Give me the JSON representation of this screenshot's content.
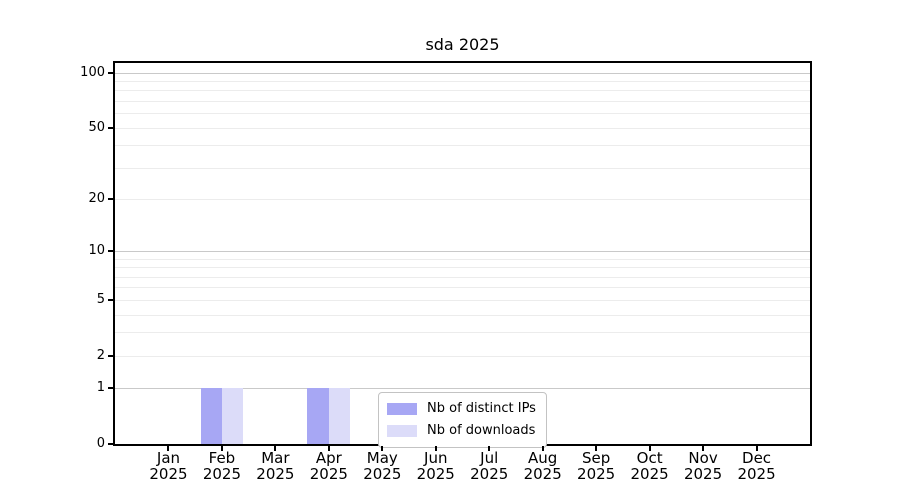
{
  "chart_data": {
    "type": "bar",
    "title": "sda 2025",
    "xlabel": "",
    "ylabel": "",
    "yscale": "log1p",
    "ylim": [
      0,
      113
    ],
    "yticks": [
      0,
      1,
      2,
      5,
      10,
      20,
      50,
      100
    ],
    "categories": [
      "Jan",
      "Feb",
      "Mar",
      "Apr",
      "May",
      "Jun",
      "Jul",
      "Aug",
      "Sep",
      "Oct",
      "Nov",
      "Dec"
    ],
    "x_year_line": "2025",
    "series": [
      {
        "name": "Nb of distinct IPs",
        "color": "#a7a7f4",
        "values": [
          0,
          1,
          0,
          1,
          0,
          0,
          0,
          0,
          0,
          0,
          0,
          0
        ]
      },
      {
        "name": "Nb of downloads",
        "color": "#dcdcf9",
        "values": [
          0,
          1,
          0,
          1,
          0,
          0,
          0,
          0,
          0,
          0,
          0,
          0
        ]
      }
    ],
    "grid": {
      "major_values": [
        1,
        10,
        100
      ],
      "minor_values": [
        2,
        3,
        4,
        5,
        6,
        7,
        8,
        9,
        20,
        30,
        40,
        50,
        60,
        70,
        80,
        90
      ],
      "major_color": "#c9c9c9",
      "minor_color": "#ececec"
    },
    "legend_position": "lower center",
    "bar_width_fraction": 0.4
  }
}
